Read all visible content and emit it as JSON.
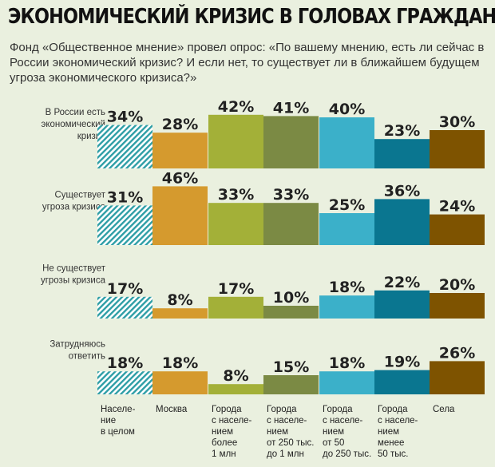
{
  "header": {
    "title": "ЭКОНОМИЧЕСКИЙ КРИЗИС В ГОЛОВАХ ГРАЖДАН",
    "subtitle": "Фонд «Общественное мнение» провел опрос: «По вашему мнению, есть ли сейчас в России экономический кризис? И если нет, то существует ли в ближайшем будущем угроза экономического кризиса?»"
  },
  "chart_data": {
    "type": "bar",
    "title": "ЭКОНОМИЧЕСКИЙ КРИЗИС В ГОЛОВАХ ГРАЖДАН",
    "unit": "%",
    "categories": [
      [
        "Населе-",
        "ние",
        "в целом"
      ],
      [
        "Москва"
      ],
      [
        "Города",
        "с населе-",
        "нием",
        "более",
        "1 млн"
      ],
      [
        "Города",
        "с населе-",
        "нием",
        "от 250 тыс.",
        "до 1 млн"
      ],
      [
        "Города",
        "с населе-",
        "нием",
        "от 50",
        "до 250 тыс."
      ],
      [
        "Города",
        "с населе-",
        "нием",
        "менее",
        "50 тыс."
      ],
      [
        "Села"
      ]
    ],
    "series_colors": [
      "#2e9ea6",
      "#d59a2e",
      "#a3b038",
      "#7b8a44",
      "#3bb0c9",
      "#0a7690",
      "#7e5300"
    ],
    "rows": [
      {
        "label": [
          "В России есть",
          "экономический",
          "кризис"
        ],
        "values": [
          34,
          28,
          42,
          41,
          40,
          23,
          30
        ]
      },
      {
        "label": [
          "Существует",
          "угроза кризиса"
        ],
        "values": [
          31,
          46,
          33,
          33,
          25,
          36,
          24
        ]
      },
      {
        "label": [
          "Не существует",
          "угрозы кризиса"
        ],
        "values": [
          17,
          8,
          17,
          10,
          18,
          22,
          20
        ]
      },
      {
        "label": [
          "Затрудняюсь",
          "ответить"
        ],
        "values": [
          18,
          18,
          8,
          15,
          18,
          19,
          26
        ]
      }
    ]
  }
}
